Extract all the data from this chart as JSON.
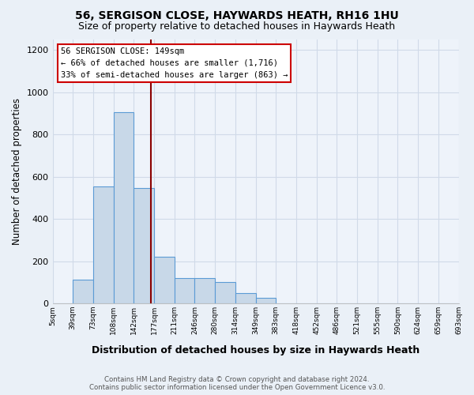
{
  "title": "56, SERGISON CLOSE, HAYWARDS HEATH, RH16 1HU",
  "subtitle": "Size of property relative to detached houses in Haywards Heath",
  "xlabel": "Distribution of detached houses by size in Haywards Heath",
  "ylabel": "Number of detached properties",
  "bar_values": [
    0,
    113,
    555,
    905,
    545,
    220,
    120,
    120,
    100,
    50,
    25,
    0,
    0,
    0,
    0,
    0,
    0,
    0,
    0,
    0
  ],
  "bin_labels": [
    "5sqm",
    "39sqm",
    "73sqm",
    "108sqm",
    "142sqm",
    "177sqm",
    "211sqm",
    "246sqm",
    "280sqm",
    "314sqm",
    "349sqm",
    "383sqm",
    "418sqm",
    "452sqm",
    "486sqm",
    "521sqm",
    "555sqm",
    "590sqm",
    "624sqm",
    "659sqm"
  ],
  "bin_labels_full": [
    "5sqm",
    "39sqm",
    "73sqm",
    "108sqm",
    "142sqm",
    "177sqm",
    "211sqm",
    "246sqm",
    "280sqm",
    "314sqm",
    "349sqm",
    "383sqm",
    "418sqm",
    "452sqm",
    "486sqm",
    "521sqm",
    "555sqm",
    "590sqm",
    "624sqm",
    "659sqm",
    "693sqm"
  ],
  "bar_color": "#c8d8e8",
  "bar_edge_color": "#5b9bd5",
  "vline_pos": 4.85,
  "vline_color": "#8b0000",
  "annotation_box_text": "56 SERGISON CLOSE: 149sqm\n← 66% of detached houses are smaller (1,716)\n33% of semi-detached houses are larger (863) →",
  "ylim": [
    0,
    1250
  ],
  "yticks": [
    0,
    200,
    400,
    600,
    800,
    1000,
    1200
  ],
  "footnote": "Contains HM Land Registry data © Crown copyright and database right 2024.\nContains public sector information licensed under the Open Government Licence v3.0.",
  "bg_color": "#eaf0f7",
  "plot_bg_color": "#eef3fa",
  "grid_color": "#d0dae8",
  "title_fontsize": 10,
  "subtitle_fontsize": 9,
  "xlabel_fontsize": 9,
  "ylabel_fontsize": 8.5
}
